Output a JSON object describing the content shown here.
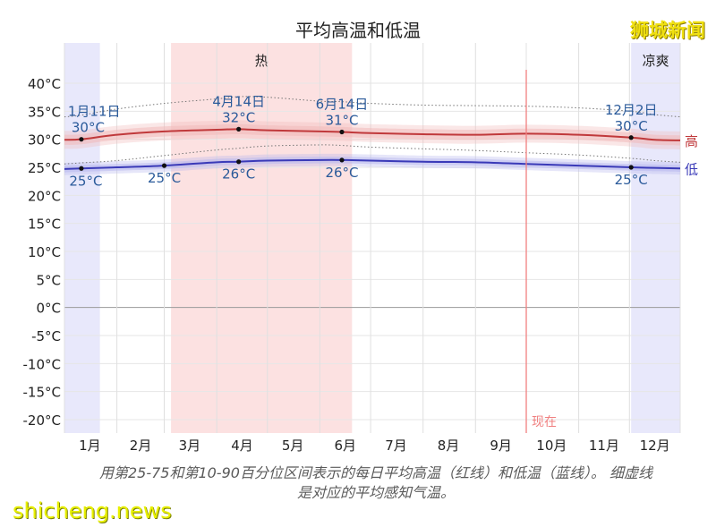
{
  "title": "平均高温和低温",
  "watermark": "狮城新闻",
  "site": "shicheng.news",
  "caption": {
    "line1": "用第25-75和第10-90百分位区间表示的每日平均高温（红线）和低温（蓝线）。 细虚线",
    "line2": "是对应的平均感知气温。"
  },
  "chart_data": {
    "type": "line",
    "title": "平均高温和低温",
    "unit": "°C",
    "ylim": [
      -22,
      42
    ],
    "yticks": [
      40,
      35,
      30,
      25,
      20,
      15,
      10,
      5,
      0,
      -5,
      -10,
      -15,
      -20
    ],
    "ytick_labels": [
      "40°C",
      "35°C",
      "30°C",
      "25°C",
      "20°C",
      "15°C",
      "10°C",
      "5°C",
      "0°C",
      "-5°C",
      "-10°C",
      "-15°C",
      "-20°C"
    ],
    "months": [
      "1月",
      "2月",
      "3月",
      "4月",
      "5月",
      "6月",
      "7月",
      "8月",
      "9月",
      "10月",
      "11月",
      "12月"
    ],
    "x_range_days": [
      1,
      365
    ],
    "grid": true,
    "seasons": [
      {
        "label": "热",
        "start_day": 64,
        "end_day": 171,
        "color": "#fbdcdc"
      },
      {
        "label": "凉爽",
        "start_day": 336,
        "end_day": 365,
        "color": "#e4e4fa"
      },
      {
        "label": "",
        "start_day": 1,
        "end_day": 22,
        "color": "#e4e4fa"
      }
    ],
    "now": {
      "label": "现在",
      "day": 274,
      "color": "#f08080"
    },
    "series": [
      {
        "name": "高",
        "color": "#c0393b",
        "band_color": "#f1b9b9",
        "x_days": [
          1,
          11,
          32,
          60,
          91,
          104,
          121,
          152,
          165,
          182,
          213,
          244,
          274,
          305,
          336,
          350,
          365
        ],
        "values": [
          29.9,
          30.0,
          30.8,
          31.4,
          31.7,
          31.8,
          31.6,
          31.4,
          31.3,
          31.1,
          30.9,
          30.8,
          31.0,
          30.8,
          30.3,
          29.9,
          29.8
        ],
        "band_25_75": 0.9,
        "band_10_90": 1.6,
        "feels_like": [
          34.0,
          34.3,
          35.4,
          36.4,
          37.2,
          37.6,
          37.5,
          36.8,
          36.7,
          36.4,
          36.1,
          36.0,
          35.9,
          35.6,
          35.0,
          34.4,
          34.0
        ]
      },
      {
        "name": "低",
        "color": "#3a3ab8",
        "band_color": "#b8b8ee",
        "x_days": [
          1,
          11,
          32,
          60,
          91,
          104,
          121,
          152,
          165,
          182,
          213,
          244,
          274,
          305,
          336,
          350,
          365
        ],
        "values": [
          24.7,
          24.8,
          25.0,
          25.3,
          25.9,
          26.0,
          26.2,
          26.3,
          26.3,
          26.2,
          26.0,
          25.9,
          25.6,
          25.3,
          25.0,
          24.9,
          24.8
        ],
        "band_25_75": 0.6,
        "band_10_90": 1.1,
        "feels_like": [
          25.6,
          25.8,
          26.2,
          27.1,
          28.1,
          28.4,
          28.8,
          29.0,
          28.9,
          28.6,
          28.3,
          28.0,
          27.6,
          27.2,
          26.6,
          26.2,
          25.9
        ]
      }
    ],
    "annotations": [
      {
        "date": "1月11日",
        "day": 11,
        "high": "30°C",
        "low": "25°C",
        "high_val": 30.0,
        "low_val": 24.8
      },
      {
        "date": "",
        "day": 60,
        "high": "",
        "low": "25°C",
        "high_val": null,
        "low_val": 25.3
      },
      {
        "date": "4月14日",
        "day": 104,
        "high": "32°C",
        "low": "26°C",
        "high_val": 31.8,
        "low_val": 26.0
      },
      {
        "date": "6月14日",
        "day": 165,
        "high": "31°C",
        "low": "26°C",
        "high_val": 31.3,
        "low_val": 26.3
      },
      {
        "date": "12月2日",
        "day": 336,
        "high": "30°C",
        "low": "25°C",
        "high_val": 30.3,
        "low_val": 25.0
      }
    ]
  }
}
